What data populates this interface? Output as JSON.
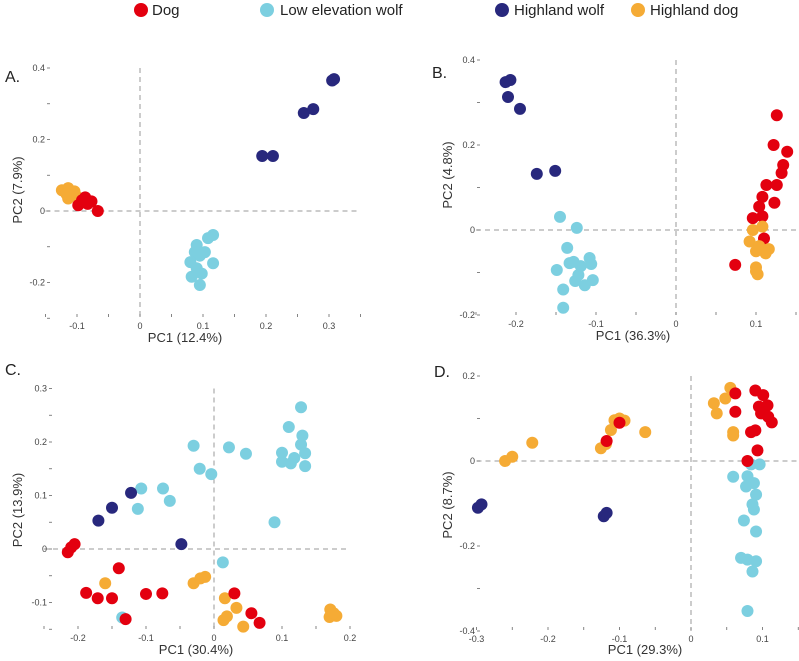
{
  "legend": [
    {
      "name": "Dog",
      "color": "#e3000f"
    },
    {
      "name": "Low elevation wolf",
      "color": "#7ccfe0"
    },
    {
      "name": "Highland wolf",
      "color": "#28287d"
    },
    {
      "name": "Highland dog",
      "color": "#f5ab35"
    }
  ],
  "chart_data": [
    {
      "type": "scatter",
      "panel": "A.",
      "xlabel": "PC1 (12.4%)",
      "ylabel": "PC2 (7.9%)",
      "xlim": [
        -0.15,
        0.35
      ],
      "ylim": [
        -0.3,
        0.4
      ],
      "xticks": [
        {
          "v": -0.1,
          "label": "-0.1"
        },
        {
          "v": 0,
          "label": "0"
        },
        {
          "v": 0.1,
          "label": "0.1"
        },
        {
          "v": 0.2,
          "label": "0.2"
        },
        {
          "v": 0.3,
          "label": "0.3"
        }
      ],
      "yticks": [
        {
          "v": 0.4,
          "label": "0.4"
        },
        {
          "v": 0.2,
          "label": "0.2"
        },
        {
          "v": 0,
          "label": "0"
        },
        {
          "v": -0.2,
          "label": "-0.2"
        }
      ],
      "reference_lines": {
        "x": 0,
        "y": 0,
        "style": "dashed"
      },
      "series": [
        {
          "name": "Low elevation wolf",
          "points": [
            [
              0.116,
              -0.067
            ],
            [
              0.108,
              -0.076
            ],
            [
              0.09,
              -0.095
            ],
            [
              0.103,
              -0.115
            ],
            [
              0.087,
              -0.115
            ],
            [
              0.095,
              -0.125
            ],
            [
              0.08,
              -0.143
            ],
            [
              0.116,
              -0.146
            ],
            [
              0.09,
              -0.16
            ],
            [
              0.098,
              -0.175
            ],
            [
              0.082,
              -0.184
            ],
            [
              0.095,
              -0.207
            ]
          ]
        },
        {
          "name": "Highland wolf",
          "points": [
            [
              0.308,
              0.369
            ],
            [
              0.305,
              0.365
            ],
            [
              0.26,
              0.274
            ],
            [
              0.275,
              0.285
            ],
            [
              0.194,
              0.154
            ],
            [
              0.211,
              0.154
            ]
          ]
        },
        {
          "name": "Highland dog",
          "points": [
            [
              -0.124,
              0.058
            ],
            [
              -0.114,
              0.064
            ],
            [
              -0.104,
              0.055
            ],
            [
              -0.114,
              0.035
            ],
            [
              -0.117,
              0.048
            ],
            [
              -0.1,
              0.04
            ]
          ]
        },
        {
          "name": "Dog",
          "points": [
            [
              -0.067,
              0.0
            ],
            [
              -0.077,
              0.027
            ],
            [
              -0.087,
              0.038
            ],
            [
              -0.098,
              0.016
            ],
            [
              -0.092,
              0.03
            ],
            [
              -0.083,
              0.02
            ]
          ]
        }
      ]
    },
    {
      "type": "scatter",
      "panel": "B.",
      "xlabel": "PC1 (36.3%)",
      "ylabel": "PC2 (4.8%)",
      "xlim": [
        -0.25,
        0.15
      ],
      "ylim": [
        -0.2,
        0.4
      ],
      "xticks": [
        {
          "v": -0.2,
          "label": "-0.2"
        },
        {
          "v": -0.1,
          "label": "-0.1"
        },
        {
          "v": 0,
          "label": "0"
        },
        {
          "v": 0.1,
          "label": "0.1"
        }
      ],
      "yticks": [
        {
          "v": 0.4,
          "label": "0.4"
        },
        {
          "v": 0.2,
          "label": "0.2"
        },
        {
          "v": 0,
          "label": "0"
        },
        {
          "v": -0.2,
          "label": "-0.2"
        }
      ],
      "reference_lines": {
        "x": 0,
        "y": 0,
        "style": "dashed"
      },
      "series": [
        {
          "name": "Low elevation wolf",
          "points": [
            [
              -0.145,
              0.031
            ],
            [
              -0.124,
              0.005
            ],
            [
              -0.136,
              -0.042
            ],
            [
              -0.149,
              -0.094
            ],
            [
              -0.128,
              -0.075
            ],
            [
              -0.108,
              -0.066
            ],
            [
              -0.106,
              -0.08
            ],
            [
              -0.122,
              -0.106
            ],
            [
              -0.104,
              -0.118
            ],
            [
              -0.114,
              -0.13
            ],
            [
              -0.126,
              -0.12
            ],
            [
              -0.141,
              -0.14
            ],
            [
              -0.141,
              -0.183
            ],
            [
              -0.119,
              -0.085
            ],
            [
              -0.133,
              -0.078
            ]
          ]
        },
        {
          "name": "Highland wolf",
          "points": [
            [
              -0.213,
              0.348
            ],
            [
              -0.207,
              0.353
            ],
            [
              -0.21,
              0.313
            ],
            [
              -0.195,
              0.285
            ],
            [
              -0.174,
              0.132
            ],
            [
              -0.151,
              0.139
            ]
          ]
        },
        {
          "name": "Dog",
          "points": [
            [
              0.126,
              0.27
            ],
            [
              0.122,
              0.2
            ],
            [
              0.139,
              0.184
            ],
            [
              0.134,
              0.153
            ],
            [
              0.132,
              0.134
            ],
            [
              0.113,
              0.106
            ],
            [
              0.126,
              0.106
            ],
            [
              0.108,
              0.078
            ],
            [
              0.123,
              0.064
            ],
            [
              0.104,
              0.055
            ],
            [
              0.108,
              0.032
            ],
            [
              0.096,
              0.028
            ],
            [
              0.074,
              -0.082
            ],
            [
              0.11,
              -0.02
            ]
          ]
        },
        {
          "name": "Highland dog",
          "points": [
            [
              0.096,
              0.0
            ],
            [
              0.108,
              0.008
            ],
            [
              0.092,
              -0.027
            ],
            [
              0.104,
              -0.038
            ],
            [
              0.116,
              -0.045
            ],
            [
              0.112,
              -0.055
            ],
            [
              0.1,
              -0.05
            ],
            [
              0.1,
              -0.088
            ],
            [
              0.102,
              -0.104
            ],
            [
              0.1,
              -0.097
            ]
          ]
        }
      ]
    },
    {
      "type": "scatter",
      "panel": "C.",
      "xlabel": "PC1 (30.4%)",
      "ylabel": "PC2 (13.9%)",
      "xlim": [
        -0.25,
        0.2
      ],
      "ylim": [
        -0.15,
        0.3
      ],
      "xticks": [
        {
          "v": -0.2,
          "label": "-0.2"
        },
        {
          "v": -0.1,
          "label": "-0.1"
        },
        {
          "v": 0,
          "label": "0"
        },
        {
          "v": 0.1,
          "label": "0.1"
        },
        {
          "v": 0.2,
          "label": "0.2"
        }
      ],
      "yticks": [
        {
          "v": 0.3,
          "label": "0.3"
        },
        {
          "v": 0.2,
          "label": "0.2"
        },
        {
          "v": 0.1,
          "label": "0.1"
        },
        {
          "v": 0,
          "label": "0"
        },
        {
          "v": -0.1,
          "label": "-0.1"
        }
      ],
      "reference_lines": {
        "x": 0,
        "y": 0,
        "style": "dashed"
      },
      "series": [
        {
          "name": "Low elevation wolf",
          "points": [
            [
              0.128,
              0.265
            ],
            [
              0.11,
              0.228
            ],
            [
              0.13,
              0.212
            ],
            [
              0.128,
              0.195
            ],
            [
              0.134,
              0.179
            ],
            [
              0.1,
              0.18
            ],
            [
              0.118,
              0.17
            ],
            [
              0.1,
              0.163
            ],
            [
              0.113,
              0.16
            ],
            [
              0.134,
              0.155
            ],
            [
              -0.03,
              0.193
            ],
            [
              0.022,
              0.19
            ],
            [
              0.047,
              0.178
            ],
            [
              -0.021,
              0.15
            ],
            [
              -0.004,
              0.14
            ],
            [
              -0.107,
              0.113
            ],
            [
              -0.075,
              0.113
            ],
            [
              -0.065,
              0.09
            ],
            [
              -0.112,
              0.075
            ],
            [
              0.089,
              0.05
            ],
            [
              0.013,
              -0.025
            ],
            [
              -0.135,
              -0.128
            ]
          ]
        },
        {
          "name": "Highland wolf",
          "points": [
            [
              -0.122,
              0.105
            ],
            [
              -0.15,
              0.077
            ],
            [
              -0.17,
              0.053
            ],
            [
              -0.048,
              0.009
            ]
          ]
        },
        {
          "name": "Highland dog",
          "points": [
            [
              -0.16,
              -0.064
            ],
            [
              -0.03,
              -0.064
            ],
            [
              -0.02,
              -0.055
            ],
            [
              -0.013,
              -0.052
            ],
            [
              0.016,
              -0.092
            ],
            [
              0.033,
              -0.11
            ],
            [
              0.014,
              -0.133
            ],
            [
              0.019,
              -0.126
            ],
            [
              0.043,
              -0.145
            ],
            [
              0.171,
              -0.113
            ],
            [
              0.18,
              -0.125
            ],
            [
              0.17,
              -0.127
            ],
            [
              0.176,
              -0.12
            ]
          ]
        },
        {
          "name": "Dog",
          "points": [
            [
              -0.205,
              0.009
            ],
            [
              -0.215,
              -0.006
            ],
            [
              -0.21,
              0.003
            ],
            [
              -0.14,
              -0.036
            ],
            [
              -0.188,
              -0.082
            ],
            [
              -0.171,
              -0.092
            ],
            [
              -0.15,
              -0.092
            ],
            [
              -0.1,
              -0.084
            ],
            [
              -0.076,
              -0.083
            ],
            [
              -0.13,
              -0.131
            ],
            [
              0.03,
              -0.083
            ],
            [
              0.055,
              -0.12
            ],
            [
              0.067,
              -0.138
            ]
          ]
        }
      ]
    },
    {
      "type": "scatter",
      "panel": "D.",
      "xlabel": "PC1 (29.3%)",
      "ylabel": "PC2 (8.7%)",
      "xlim": [
        -0.3,
        0.15
      ],
      "ylim": [
        -0.4,
        0.2
      ],
      "xticks": [
        {
          "v": -0.3,
          "label": "-0.3"
        },
        {
          "v": -0.2,
          "label": "-0.2"
        },
        {
          "v": -0.1,
          "label": "-0.1"
        },
        {
          "v": 0,
          "label": "0"
        },
        {
          "v": 0.1,
          "label": "0.1"
        }
      ],
      "yticks": [
        {
          "v": 0.2,
          "label": "0.2"
        },
        {
          "v": 0,
          "label": "0"
        },
        {
          "v": -0.2,
          "label": "-0.2"
        },
        {
          "v": -0.4,
          "label": "-0.4"
        }
      ],
      "reference_lines": {
        "x": 0,
        "y": 0,
        "style": "dashed"
      },
      "series": [
        {
          "name": "Low elevation wolf",
          "points": [
            [
              0.084,
              -0.008
            ],
            [
              0.096,
              -0.008
            ],
            [
              0.059,
              -0.037
            ],
            [
              0.079,
              -0.036
            ],
            [
              0.088,
              -0.052
            ],
            [
              0.077,
              -0.06
            ],
            [
              0.091,
              -0.079
            ],
            [
              0.086,
              -0.102
            ],
            [
              0.088,
              -0.114
            ],
            [
              0.074,
              -0.14
            ],
            [
              0.091,
              -0.166
            ],
            [
              0.07,
              -0.228
            ],
            [
              0.079,
              -0.232
            ],
            [
              0.091,
              -0.236
            ],
            [
              0.086,
              -0.26
            ],
            [
              0.079,
              -0.353
            ]
          ]
        },
        {
          "name": "Highland wolf",
          "points": [
            [
              -0.298,
              -0.11
            ],
            [
              -0.293,
              -0.102
            ],
            [
              -0.122,
              -0.13
            ],
            [
              -0.118,
              -0.122
            ]
          ]
        },
        {
          "name": "Highland dog",
          "points": [
            [
              -0.26,
              0.0
            ],
            [
              -0.25,
              0.01
            ],
            [
              -0.222,
              0.043
            ],
            [
              -0.126,
              0.03
            ],
            [
              -0.119,
              0.04
            ],
            [
              -0.112,
              0.073
            ],
            [
              -0.107,
              0.096
            ],
            [
              -0.093,
              0.095
            ],
            [
              -0.1,
              0.1
            ],
            [
              -0.064,
              0.068
            ],
            [
              0.032,
              0.136
            ],
            [
              0.055,
              0.172
            ],
            [
              0.048,
              0.147
            ],
            [
              0.036,
              0.112
            ],
            [
              0.059,
              0.068
            ],
            [
              0.059,
              0.06
            ]
          ]
        },
        {
          "name": "Dog",
          "points": [
            [
              0.062,
              0.159
            ],
            [
              0.062,
              0.116
            ],
            [
              -0.1,
              0.09
            ],
            [
              -0.118,
              0.047
            ],
            [
              0.09,
              0.166
            ],
            [
              0.101,
              0.155
            ],
            [
              0.095,
              0.128
            ],
            [
              0.107,
              0.131
            ],
            [
              0.098,
              0.112
            ],
            [
              0.108,
              0.104
            ],
            [
              0.113,
              0.091
            ],
            [
              0.084,
              0.068
            ],
            [
              0.09,
              0.072
            ],
            [
              0.093,
              0.025
            ],
            [
              0.079,
              0.0
            ]
          ]
        }
      ]
    }
  ]
}
